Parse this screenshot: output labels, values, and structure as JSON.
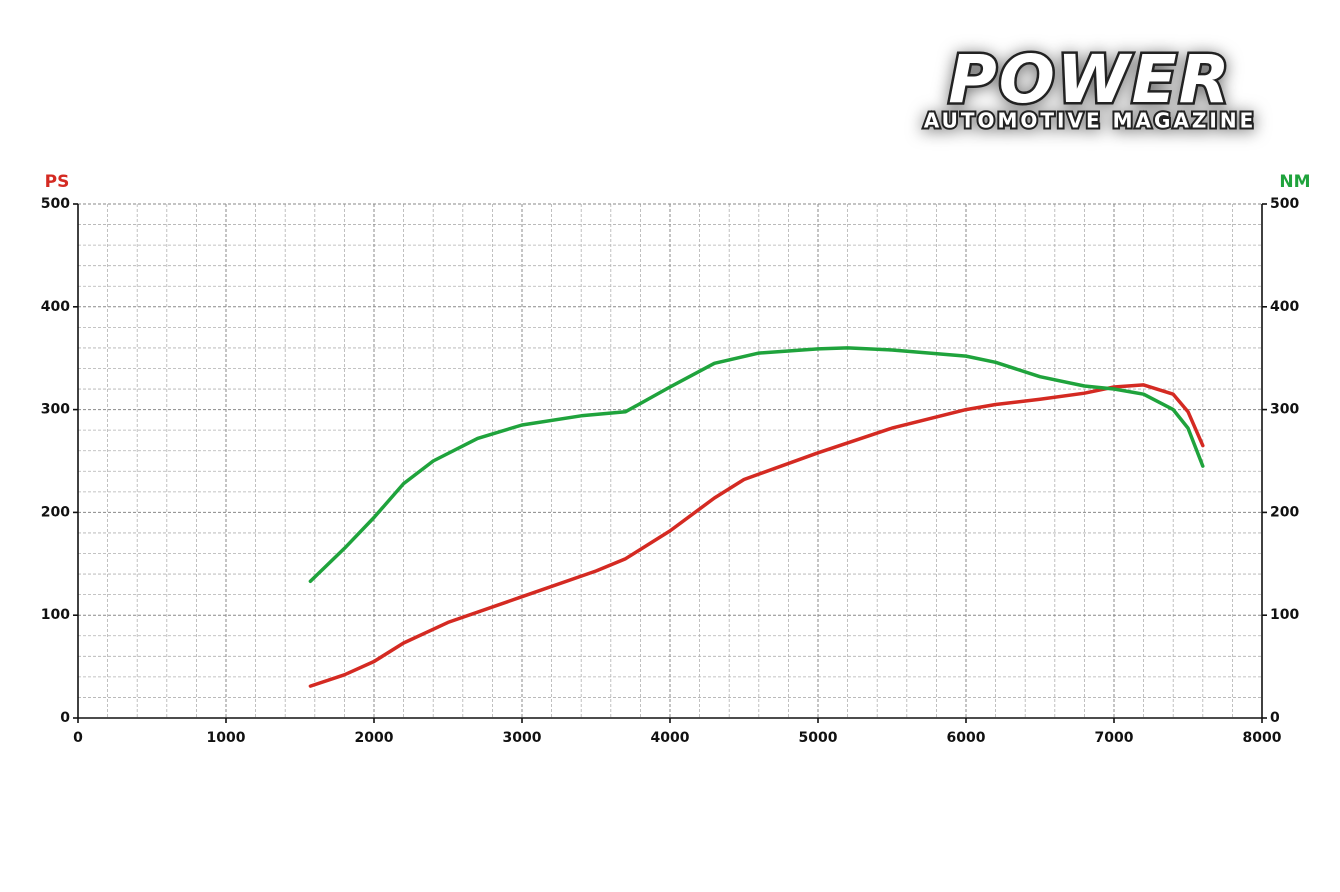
{
  "logo": {
    "title": "POWER",
    "subtitle": "AUTOMOTIVE MAGAZINE"
  },
  "chart_data": {
    "type": "line",
    "y_label": "PS",
    "y2_label": "NM",
    "xlim": [
      0,
      8000
    ],
    "xticks": [
      0,
      1000,
      2000,
      3000,
      4000,
      5000,
      6000,
      7000,
      8000
    ],
    "ylim": [
      0,
      500
    ],
    "yticks": [
      0,
      100,
      200,
      300,
      400,
      500
    ],
    "y2lim": [
      0,
      500
    ],
    "y2ticks": [
      0,
      100,
      200,
      300,
      400,
      500
    ],
    "grid": true,
    "minor_grid": true,
    "series": [
      {
        "name": "PS",
        "color": "#d42a22",
        "axis": "y",
        "x": [
          1570,
          1800,
          2000,
          2200,
          2500,
          3000,
          3500,
          3700,
          4000,
          4300,
          4500,
          5000,
          5500,
          6000,
          6200,
          6500,
          6800,
          7000,
          7200,
          7400,
          7500,
          7600
        ],
        "values": [
          31,
          42,
          55,
          73,
          93,
          118,
          143,
          155,
          182,
          214,
          232,
          258,
          282,
          300,
          305,
          310,
          316,
          322,
          324,
          315,
          298,
          265
        ]
      },
      {
        "name": "NM",
        "color": "#1fa33c",
        "axis": "y2",
        "x": [
          1570,
          1800,
          2000,
          2200,
          2400,
          2700,
          3000,
          3400,
          3700,
          4000,
          4300,
          4600,
          5000,
          5200,
          5500,
          6000,
          6200,
          6500,
          6800,
          7000,
          7200,
          7400,
          7500,
          7600
        ],
        "values": [
          133,
          165,
          195,
          228,
          250,
          272,
          285,
          294,
          298,
          322,
          345,
          355,
          359,
          360,
          358,
          352,
          346,
          332,
          323,
          320,
          315,
          300,
          282,
          245
        ]
      }
    ]
  }
}
